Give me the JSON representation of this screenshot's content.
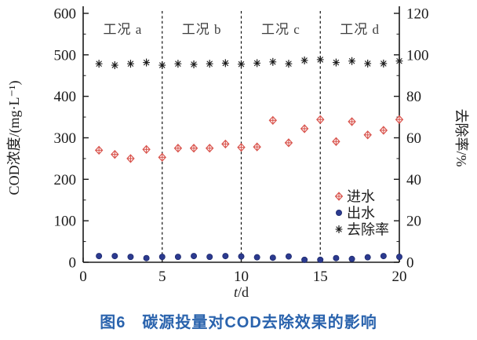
{
  "figure": {
    "caption": "图6　碳源投量对COD去除效果的影响",
    "caption_color": "#2a63ad"
  },
  "chart_data": {
    "type": "scatter",
    "x": [
      1,
      2,
      3,
      4,
      5,
      6,
      7,
      8,
      9,
      10,
      11,
      12,
      13,
      14,
      15,
      16,
      17,
      18,
      19,
      20
    ],
    "xlabel": "t/d",
    "ylabel_left": "COD浓度/(mg·L⁻¹)",
    "ylabel_right": "去除率/%",
    "xlim": [
      0,
      20
    ],
    "ylim_left": [
      0,
      600
    ],
    "ylim_right": [
      0,
      120
    ],
    "x_ticks": [
      0,
      5,
      10,
      15,
      20
    ],
    "y_ticks_left": [
      0,
      100,
      200,
      300,
      400,
      500,
      600
    ],
    "y_ticks_right": [
      0,
      20,
      40,
      60,
      80,
      100,
      120
    ],
    "y_minor_step_left": 50,
    "y_minor_step_right": 10,
    "grid": false,
    "region_dividers_x": [
      5,
      10,
      15
    ],
    "regions": [
      {
        "label": "工况 a",
        "x_center": 2.5
      },
      {
        "label": "工况 b",
        "x_center": 7.5
      },
      {
        "label": "工况 c",
        "x_center": 12.5
      },
      {
        "label": "工况 d",
        "x_center": 17.5
      }
    ],
    "series": [
      {
        "name": "进水",
        "marker": "diamond-cross",
        "color": "#d9544d",
        "axis": "left",
        "values": [
          270,
          260,
          250,
          272,
          253,
          275,
          275,
          275,
          285,
          277,
          278,
          342,
          288,
          322,
          344,
          291,
          339,
          307,
          318,
          344
        ]
      },
      {
        "name": "出水",
        "marker": "filled-circle",
        "color": "#2b3a8f",
        "axis": "left",
        "values": [
          15,
          15,
          13,
          10,
          13,
          13,
          15,
          13,
          15,
          14,
          12,
          11,
          14,
          6,
          6,
          10,
          8,
          12,
          15,
          13
        ]
      },
      {
        "name": "去除率",
        "marker": "asterisk",
        "color": "#1a1a1a",
        "axis": "right",
        "values": [
          95.7,
          95.0,
          95.7,
          96.3,
          95.0,
          95.7,
          95.4,
          95.7,
          96.0,
          95.5,
          96.0,
          96.6,
          95.7,
          97.3,
          97.7,
          96.3,
          97.0,
          95.8,
          95.8,
          97.0
        ]
      }
    ],
    "legend": {
      "position": "inside-bottom-right",
      "items": [
        "进水",
        "出水",
        "去除率"
      ]
    }
  }
}
